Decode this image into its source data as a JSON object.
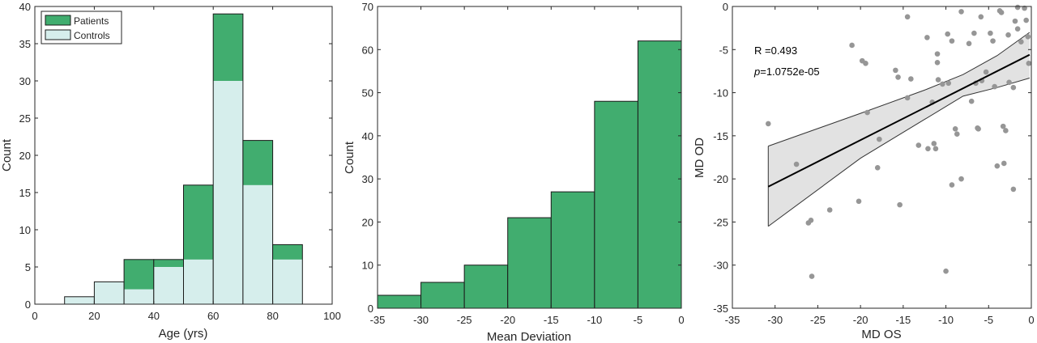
{
  "colors": {
    "patients": "#41ad6f",
    "controls": "#d6eeec",
    "bar_stroke": "#1a1a1a",
    "scatter_point": "#969696",
    "ci_fill": "#e2e2e2",
    "fit_line": "#000000"
  },
  "chart_data": [
    {
      "type": "bar",
      "subtype": "stacked-histogram",
      "xlabel": "Age (yrs)",
      "ylabel": "Count",
      "xlim": [
        0,
        100
      ],
      "ylim": [
        0,
        40
      ],
      "xticks": [
        "0",
        "20",
        "40",
        "60",
        "80",
        "100"
      ],
      "yticks": [
        "0",
        "5",
        "10",
        "15",
        "20",
        "25",
        "30",
        "35",
        "40"
      ],
      "bin_edges": [
        10,
        20,
        30,
        40,
        50,
        60,
        70,
        80,
        90
      ],
      "series": [
        {
          "name": "Controls",
          "values": [
            1,
            3,
            2,
            5,
            6,
            30,
            16,
            6
          ]
        },
        {
          "name": "Patients",
          "values": [
            0,
            0,
            4,
            1,
            10,
            9,
            6,
            2
          ]
        }
      ],
      "legend": {
        "position": "top-left",
        "entries": [
          "Patients",
          "Controls"
        ]
      }
    },
    {
      "type": "bar",
      "subtype": "histogram",
      "xlabel": "Mean Deviation",
      "ylabel": "Count",
      "xlim": [
        -35,
        0
      ],
      "ylim": [
        0,
        70
      ],
      "xticks": [
        "-35",
        "-30",
        "-25",
        "-20",
        "-15",
        "-10",
        "-5",
        "0"
      ],
      "yticks": [
        "0",
        "10",
        "20",
        "30",
        "40",
        "50",
        "60",
        "70"
      ],
      "bin_edges": [
        -35,
        -30,
        -25,
        -20,
        -15,
        -10,
        -5,
        0
      ],
      "values": [
        3,
        6,
        10,
        21,
        27,
        48,
        62
      ]
    },
    {
      "type": "scatter",
      "xlabel": "MD OS",
      "ylabel": "MD OD",
      "xlim": [
        -35,
        0
      ],
      "ylim": [
        -35,
        0
      ],
      "xticks": [
        "-35",
        "-30",
        "-25",
        "-20",
        "-15",
        "-10",
        "-5",
        "0"
      ],
      "yticks": [
        "-35",
        "-30",
        "-25",
        "-20",
        "-15",
        "-10",
        "-5",
        "0"
      ],
      "annotations": {
        "r": "R =0.493",
        "p_italic": "p",
        "p_value": "=1.0752e-05"
      },
      "fit": {
        "x": [
          -30.8,
          -0.2
        ],
        "y": [
          -20.9,
          -5.6
        ]
      },
      "ci_upper": {
        "x": [
          -30.8,
          -20,
          -12.5,
          -8,
          -4,
          -0.2
        ],
        "y": [
          -16.2,
          -12.4,
          -9.7,
          -7.9,
          -5.7,
          -3.0
        ]
      },
      "ci_lower": {
        "x": [
          -30.8,
          -20,
          -12.5,
          -8,
          -4,
          -0.2
        ],
        "y": [
          -25.5,
          -17.6,
          -13.1,
          -10.4,
          -9.4,
          -8.3
        ]
      },
      "points": [
        [
          -30.8,
          -13.6
        ],
        [
          -27.5,
          -18.3
        ],
        [
          -26.1,
          -25.1
        ],
        [
          -25.8,
          -24.8
        ],
        [
          -25.7,
          -31.3
        ],
        [
          -23.6,
          -23.6
        ],
        [
          -21.0,
          -4.5
        ],
        [
          -20.2,
          -22.6
        ],
        [
          -19.8,
          -6.3
        ],
        [
          -19.4,
          -6.6
        ],
        [
          -19.2,
          -12.3
        ],
        [
          -18.0,
          -18.7
        ],
        [
          -17.8,
          -15.4
        ],
        [
          -15.9,
          -7.4
        ],
        [
          -15.6,
          -8.2
        ],
        [
          -15.4,
          -23.0
        ],
        [
          -14.5,
          -1.2
        ],
        [
          -14.5,
          -10.6
        ],
        [
          -14.1,
          -8.4
        ],
        [
          -13.2,
          -16.1
        ],
        [
          -12.2,
          -3.6
        ],
        [
          -12.1,
          -16.5
        ],
        [
          -11.6,
          -11.1
        ],
        [
          -11.4,
          -15.9
        ],
        [
          -11.0,
          -5.5
        ],
        [
          -11.0,
          -6.5
        ],
        [
          -11.2,
          -16.5
        ],
        [
          -10.9,
          -8.5
        ],
        [
          -10.4,
          -9.0
        ],
        [
          -10.0,
          -30.7
        ],
        [
          -9.8,
          -3.2
        ],
        [
          -9.7,
          -8.9
        ],
        [
          -9.3,
          -4.0
        ],
        [
          -9.3,
          -20.7
        ],
        [
          -8.9,
          -14.2
        ],
        [
          -8.7,
          -14.8
        ],
        [
          -8.2,
          -0.6
        ],
        [
          -8.2,
          -20.0
        ],
        [
          -7.3,
          -4.3
        ],
        [
          -7.0,
          -11.0
        ],
        [
          -6.7,
          -3.1
        ],
        [
          -6.5,
          -8.9
        ],
        [
          -6.3,
          -14.1
        ],
        [
          -6.2,
          -14.2
        ],
        [
          -5.9,
          -1.2
        ],
        [
          -5.8,
          -8.6
        ],
        [
          -5.3,
          -7.6
        ],
        [
          -4.8,
          -3.1
        ],
        [
          -4.5,
          -4.0
        ],
        [
          -4.3,
          -9.3
        ],
        [
          -4.0,
          -18.5
        ],
        [
          -3.7,
          -0.5
        ],
        [
          -3.5,
          -0.7
        ],
        [
          -3.3,
          -13.9
        ],
        [
          -3.2,
          -18.2
        ],
        [
          -3.0,
          -14.4
        ],
        [
          -2.7,
          -3.3
        ],
        [
          -2.6,
          -8.8
        ],
        [
          -2.1,
          -9.4
        ],
        [
          -2.1,
          -21.2
        ],
        [
          -1.9,
          -1.7
        ],
        [
          -1.6,
          -0.1
        ],
        [
          -1.6,
          -2.6
        ],
        [
          -1.2,
          -4.1
        ],
        [
          -0.8,
          -0.2
        ],
        [
          -0.6,
          -1.6
        ],
        [
          -0.4,
          -3.5
        ],
        [
          -0.3,
          -6.6
        ]
      ]
    }
  ]
}
